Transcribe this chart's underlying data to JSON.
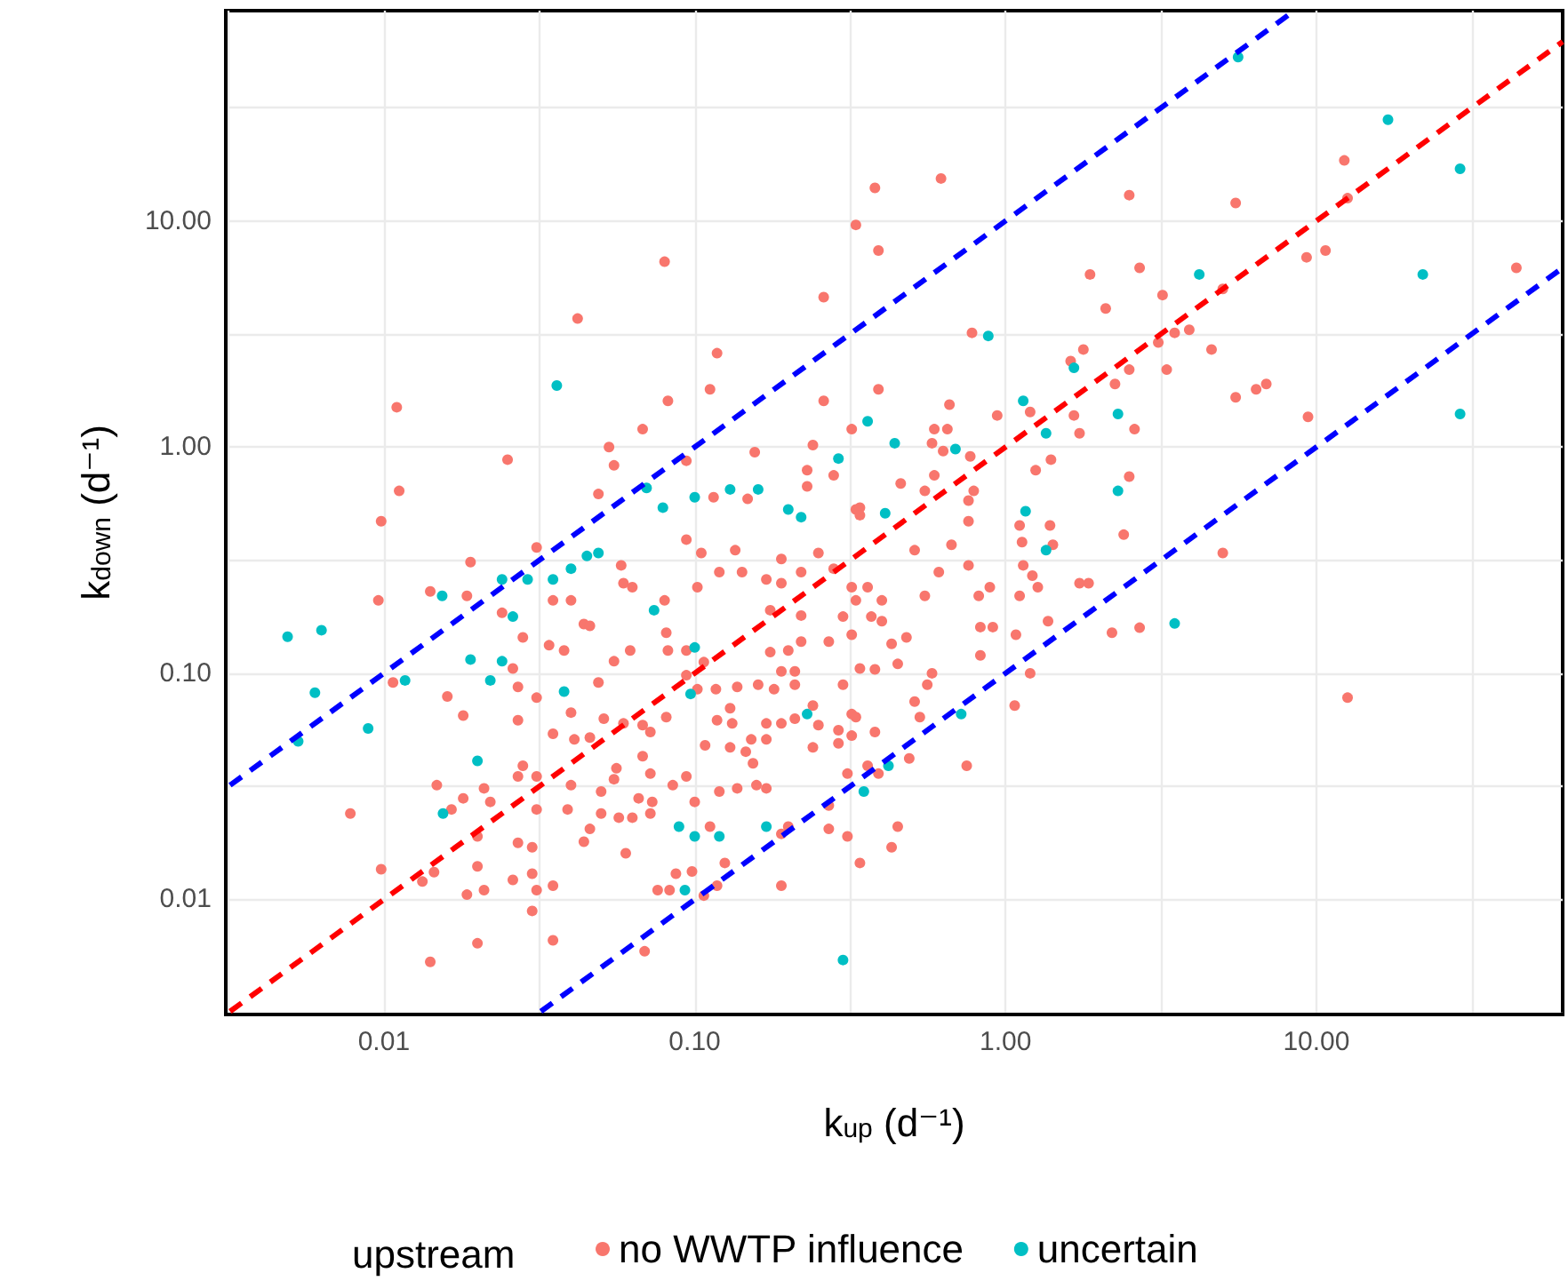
{
  "chart_data": {
    "type": "scatter",
    "xlabel": "k$_{up}$ (d⁻¹)",
    "ylabel": "k$_{down}$ (d⁻¹)",
    "legend_title": "upstream",
    "log": "xy",
    "grid": true,
    "legend": "bottom",
    "marker": "circle",
    "xlim": [
      0.0031,
      62
    ],
    "ylim": [
      0.0031,
      85
    ],
    "xticks": [
      {
        "value": 0.00316,
        "label": null
      },
      {
        "value": 0.01,
        "label": "0.01"
      },
      {
        "value": 0.0316,
        "label": null
      },
      {
        "value": 0.1,
        "label": "0.10"
      },
      {
        "value": 0.316,
        "label": null
      },
      {
        "value": 1,
        "label": "1.00"
      },
      {
        "value": 3.16,
        "label": null
      },
      {
        "value": 10,
        "label": "10.00"
      },
      {
        "value": 31.6,
        "label": null
      }
    ],
    "yticks": [
      {
        "value": 0.00316,
        "label": null
      },
      {
        "value": 0.01,
        "label": "0.01"
      },
      {
        "value": 0.0316,
        "label": null
      },
      {
        "value": 0.1,
        "label": "0.10"
      },
      {
        "value": 0.316,
        "label": null
      },
      {
        "value": 1,
        "label": "1.00"
      },
      {
        "value": 3.16,
        "label": null
      },
      {
        "value": 10,
        "label": "10.00"
      },
      {
        "value": 31.6,
        "label": null
      }
    ],
    "series": [
      {
        "name": "no WWTP influence",
        "color": "#f8766d",
        "x": [
          0.38,
          0.33,
          0.39,
          0.08,
          0.042,
          0.26,
          0.118,
          0.112,
          0.082,
          0.26,
          0.39,
          0.011,
          0.0112,
          0.0098,
          0.025,
          0.068,
          0.053,
          0.055,
          0.049,
          0.094,
          0.156,
          0.24,
          0.23,
          0.23,
          0.28,
          0.32,
          0.148,
          0.115,
          0.33,
          0.62,
          2.5,
          5.5,
          12.3,
          12.6,
          9.3,
          10.7,
          44,
          1.87,
          2.7,
          2.1,
          3.2,
          5.0,
          3.5,
          3.9,
          3.1,
          4.6,
          0.78,
          1.78,
          1.62,
          2.5,
          3.3,
          2.25,
          5.5,
          6.4,
          6.9,
          9.4,
          0.94,
          1.2,
          1.66,
          1.73,
          2.6,
          1.4,
          1.25,
          2.5,
          0.66,
          0.59,
          0.65,
          0.58,
          0.63,
          0.77,
          0.59,
          0.46,
          0.55,
          0.79,
          0.76,
          0.34,
          0.76,
          1.11,
          1.39,
          2.4,
          5.0,
          1.13,
          1.42,
          1.14,
          1.22,
          1.27,
          1.73,
          1.85,
          1.11,
          0.82,
          0.89,
          0.76,
          1.37,
          1.08,
          2.2,
          2.7,
          0.83,
          0.91,
          0.83,
          1.2,
          1.07,
          12.6,
          0.75,
          0.49,
          0.58,
          0.56,
          0.51,
          0.53,
          0.38,
          0.45,
          0.43,
          0.34,
          0.39,
          0.36,
          0.48,
          0.45,
          0.38,
          0.51,
          0.67,
          0.61,
          0.55,
          0.4,
          0.37,
          0.33,
          0.43,
          0.32,
          0.0096,
          0.0078,
          0.0107,
          0.0098,
          0.0141,
          0.02,
          0.0133,
          0.0145,
          0.019,
          0.0141,
          0.0185,
          0.018,
          0.016,
          0.0148,
          0.0165,
          0.018,
          0.021,
          0.02,
          0.02,
          0.0185,
          0.021,
          0.022,
          0.024,
          0.026,
          0.027,
          0.027,
          0.026,
          0.027,
          0.03,
          0.028,
          0.027,
          0.031,
          0.031,
          0.03,
          0.031,
          0.03,
          0.035,
          0.035,
          0.034,
          0.035,
          0.04,
          0.031,
          0.035,
          0.028,
          0.031,
          0.038,
          0.044,
          0.046,
          0.04,
          0.041,
          0.04,
          0.039,
          0.046,
          0.044,
          0.05,
          0.05,
          0.049,
          0.055,
          0.058,
          0.059,
          0.063,
          0.062,
          0.059,
          0.051,
          0.046,
          0.056,
          0.055,
          0.057,
          0.063,
          0.06,
          0.068,
          0.072,
          0.066,
          0.073,
          0.072,
          0.069,
          0.076,
          0.083,
          0.087,
          0.098,
          0.107,
          0.118,
          0.19,
          0.085,
          0.094,
          0.1,
          0.112,
          0.125,
          0.12,
          0.137,
          0.158,
          0.17,
          0.19,
          0.2,
          0.27,
          0.31,
          0.27,
          0.154,
          0.13,
          0.146,
          0.108,
          0.118,
          0.132,
          0.152,
          0.17,
          0.17,
          0.19,
          0.21,
          0.24,
          0.25,
          0.29,
          0.32,
          0.33,
          0.24,
          0.29,
          0.102,
          0.117,
          0.137,
          0.16,
          0.18,
          0.21,
          0.3,
          0.107,
          0.094,
          0.082,
          0.094,
          0.081,
          0.072,
          0.068,
          0.081,
          0.08,
          0.094,
          0.105,
          0.102,
          0.12,
          0.135,
          0.142,
          0.17,
          0.19,
          0.22,
          0.25,
          0.28,
          0.32,
          0.36,
          0.34,
          0.19,
          0.22,
          0.175,
          0.3,
          0.22,
          0.27,
          0.32,
          0.175,
          0.2,
          0.19,
          0.21,
          0.34,
          0.4,
          0.13,
          0.31
        ],
        "values": [
          14,
          9.6,
          7.4,
          6.6,
          3.7,
          4.6,
          2.6,
          1.8,
          1.6,
          1.6,
          1.8,
          1.5,
          0.64,
          0.47,
          0.88,
          1.2,
          1.0,
          0.83,
          0.62,
          0.87,
          0.95,
          1.02,
          0.79,
          0.67,
          0.75,
          1.2,
          0.59,
          0.6,
          0.53,
          15.4,
          13,
          12,
          18.5,
          12.6,
          6.9,
          7.4,
          6.2,
          5.8,
          6.2,
          4.1,
          4.7,
          5.0,
          3.2,
          3.3,
          2.9,
          2.7,
          3.2,
          2.7,
          2.4,
          2.2,
          2.2,
          1.9,
          1.66,
          1.8,
          1.9,
          1.36,
          1.38,
          1.43,
          1.38,
          1.15,
          1.2,
          0.88,
          0.79,
          0.74,
          1.54,
          1.2,
          1.2,
          1.04,
          0.96,
          0.91,
          0.75,
          0.69,
          0.64,
          0.64,
          0.58,
          0.54,
          0.47,
          0.45,
          0.45,
          0.41,
          0.34,
          0.38,
          0.37,
          0.3,
          0.27,
          0.24,
          0.25,
          0.25,
          0.22,
          0.22,
          0.24,
          0.3,
          0.17,
          0.148,
          0.151,
          0.159,
          0.16,
          0.16,
          0.12,
          0.1,
          0.072,
          0.078,
          0.039,
          0.042,
          0.1,
          0.089,
          0.075,
          0.064,
          0.055,
          0.021,
          0.017,
          0.0145,
          0.036,
          0.039,
          0.144,
          0.11,
          0.104,
          0.35,
          0.37,
          0.28,
          0.22,
          0.21,
          0.178,
          0.21,
          0.135,
          0.066,
          0.21,
          0.024,
          0.091,
          0.0136,
          0.0053,
          0.0064,
          0.012,
          0.0132,
          0.31,
          0.23,
          0.22,
          0.065,
          0.079,
          0.032,
          0.025,
          0.028,
          0.031,
          0.019,
          0.014,
          0.0105,
          0.011,
          0.027,
          0.185,
          0.105,
          0.087,
          0.062,
          0.0122,
          0.0178,
          0.017,
          0.039,
          0.035,
          0.035,
          0.025,
          0.013,
          0.011,
          0.0089,
          0.0066,
          0.0115,
          0.133,
          0.21,
          0.21,
          0.078,
          0.054,
          0.144,
          0.36,
          0.126,
          0.165,
          0.162,
          0.067,
          0.051,
          0.032,
          0.025,
          0.0205,
          0.018,
          0.024,
          0.03,
          0.091,
          0.113,
          0.3,
          0.25,
          0.24,
          0.126,
          0.06,
          0.063,
          0.052,
          0.038,
          0.034,
          0.023,
          0.023,
          0.016,
          0.043,
          0.036,
          0.028,
          0.027,
          0.024,
          0.0059,
          0.011,
          0.011,
          0.013,
          0.0133,
          0.0104,
          0.0115,
          0.0115,
          0.032,
          0.035,
          0.027,
          0.021,
          0.0145,
          0.03,
          0.031,
          0.032,
          0.031,
          0.0195,
          0.021,
          0.0205,
          0.019,
          0.026,
          0.04,
          0.047,
          0.045,
          0.048,
          0.062,
          0.06,
          0.051,
          0.06,
          0.051,
          0.06,
          0.063,
          0.072,
          0.059,
          0.056,
          0.053,
          0.064,
          0.047,
          0.049,
          0.085,
          0.085,
          0.087,
          0.089,
          0.085,
          0.089,
          0.089,
          0.112,
          0.126,
          0.126,
          0.098,
          0.064,
          0.055,
          0.059,
          0.151,
          0.21,
          0.39,
          0.34,
          0.24,
          0.28,
          0.35,
          0.28,
          0.26,
          0.32,
          0.28,
          0.34,
          0.29,
          0.24,
          0.24,
          0.5,
          0.25,
          0.18,
          0.19,
          0.178,
          0.138,
          0.138,
          0.148,
          0.124,
          0.126,
          0.102,
          0.102,
          0.105,
          0.17,
          0.07,
          0.036
        ]
      },
      {
        "name": "uncertain",
        "color": "#00bfc4",
        "x": [
          0.0049,
          0.0063,
          0.006,
          0.0053,
          0.0089,
          0.0117,
          0.0154,
          0.0155,
          0.02,
          0.019,
          0.022,
          0.024,
          0.026,
          0.029,
          0.024,
          0.035,
          0.04,
          0.049,
          0.036,
          0.07,
          0.079,
          0.1,
          0.13,
          0.16,
          0.2,
          0.22,
          0.29,
          0.36,
          0.44,
          0.69,
          0.88,
          1.16,
          1.35,
          2.3,
          4.2,
          5.6,
          17,
          22,
          29,
          29,
          3.5,
          0.72,
          0.42,
          0.35,
          0.3,
          0.089,
          0.1,
          0.12,
          0.093,
          0.17,
          0.23,
          0.097,
          0.1,
          0.038,
          0.074,
          0.045,
          1.35,
          1.66,
          1.14,
          2.3,
          0.41
        ],
        "values": [
          0.145,
          0.155,
          0.082,
          0.05,
          0.057,
          0.093,
          0.22,
          0.024,
          0.041,
          0.115,
          0.093,
          0.113,
          0.178,
          0.26,
          0.26,
          0.26,
          0.29,
          0.34,
          1.87,
          0.66,
          0.54,
          0.6,
          0.65,
          0.65,
          0.53,
          0.49,
          0.89,
          1.3,
          1.04,
          0.98,
          3.1,
          0.52,
          0.35,
          1.4,
          5.8,
          53,
          28,
          5.8,
          17,
          1.4,
          0.166,
          0.066,
          0.039,
          0.03,
          0.0054,
          0.021,
          0.019,
          0.019,
          0.011,
          0.021,
          0.066,
          0.081,
          0.13,
          0.083,
          0.19,
          0.33,
          1.15,
          2.24,
          1.6,
          0.64,
          0.51
        ]
      },
      {
        "type": "line",
        "color": "#0000ff",
        "marker": "none",
        "line_style": "dashed",
        "x": [
          0.0032,
          8.5
        ],
        "values": [
          0.032,
          85
        ]
      },
      {
        "type": "line",
        "color": "#ff0000",
        "marker": "none",
        "line_style": "dashed",
        "x": [
          0.0032,
          62
        ],
        "values": [
          0.0032,
          62
        ]
      },
      {
        "type": "line",
        "color": "#0000ff",
        "marker": "none",
        "line_style": "dashed",
        "x": [
          0.032,
          62
        ],
        "values": [
          0.0032,
          6.2
        ]
      }
    ]
  }
}
